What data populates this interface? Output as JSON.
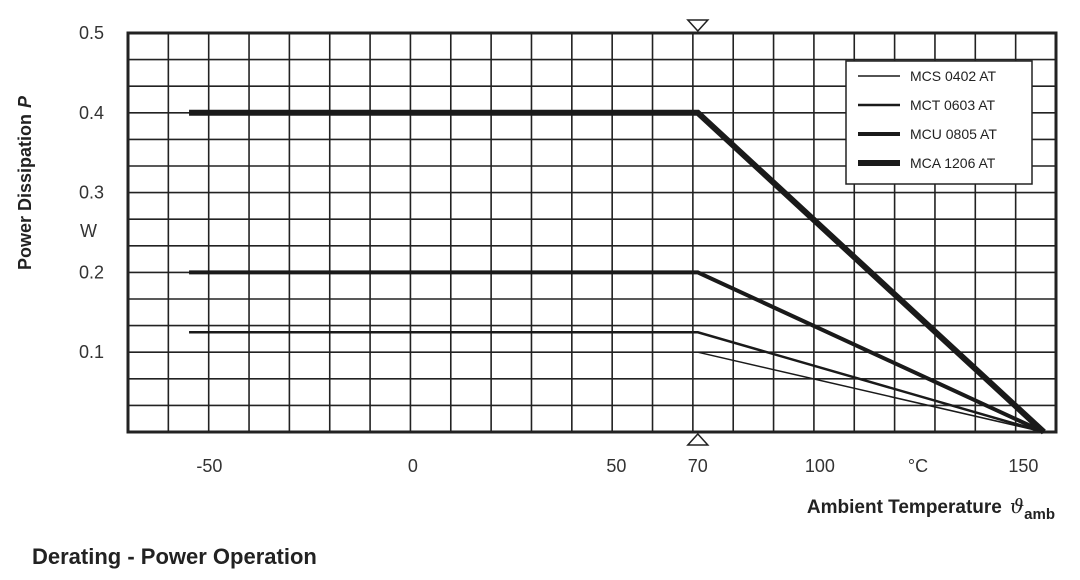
{
  "caption": "Derating - Power Operation",
  "chart_data": {
    "type": "line",
    "title": "",
    "ylabel": "Power Dissipation",
    "ylabel_symbol": "P",
    "y_unit": "W",
    "xlabel": "Ambient Temperature",
    "xlabel_symbol": "ϑ",
    "xlabel_subscript": "amb",
    "x_unit": "°C",
    "xlim": [
      -70,
      158
    ],
    "ylim": [
      0,
      0.5
    ],
    "x_ticks": [
      {
        "value": -50,
        "label": "-50"
      },
      {
        "value": 0,
        "label": "0"
      },
      {
        "value": 50,
        "label": "50"
      },
      {
        "value": 70,
        "label": "70"
      },
      {
        "value": 100,
        "label": "100"
      },
      {
        "value": 150,
        "label": "150"
      }
    ],
    "y_ticks": [
      {
        "value": 0.1,
        "label": "0.1"
      },
      {
        "value": 0.2,
        "label": "0.2"
      },
      {
        "value": 0.3,
        "label": "0.3"
      },
      {
        "value": 0.4,
        "label": "0.4"
      },
      {
        "value": 0.5,
        "label": "0.5"
      }
    ],
    "grid": true,
    "marker_value": 70,
    "legend_position": "top-right",
    "series": [
      {
        "name": "MCS 0402 AT",
        "x": [
          70,
          155
        ],
        "y": [
          0.1,
          0
        ]
      },
      {
        "name": "MCT 0603 AT",
        "x": [
          -55,
          70,
          155
        ],
        "y": [
          0.125,
          0.125,
          0
        ]
      },
      {
        "name": "MCU 0805 AT",
        "x": [
          -55,
          70,
          155
        ],
        "y": [
          0.2,
          0.2,
          0
        ]
      },
      {
        "name": "MCA 1206 AT",
        "x": [
          -55,
          70,
          155
        ],
        "y": [
          0.4,
          0.4,
          0
        ]
      }
    ]
  }
}
